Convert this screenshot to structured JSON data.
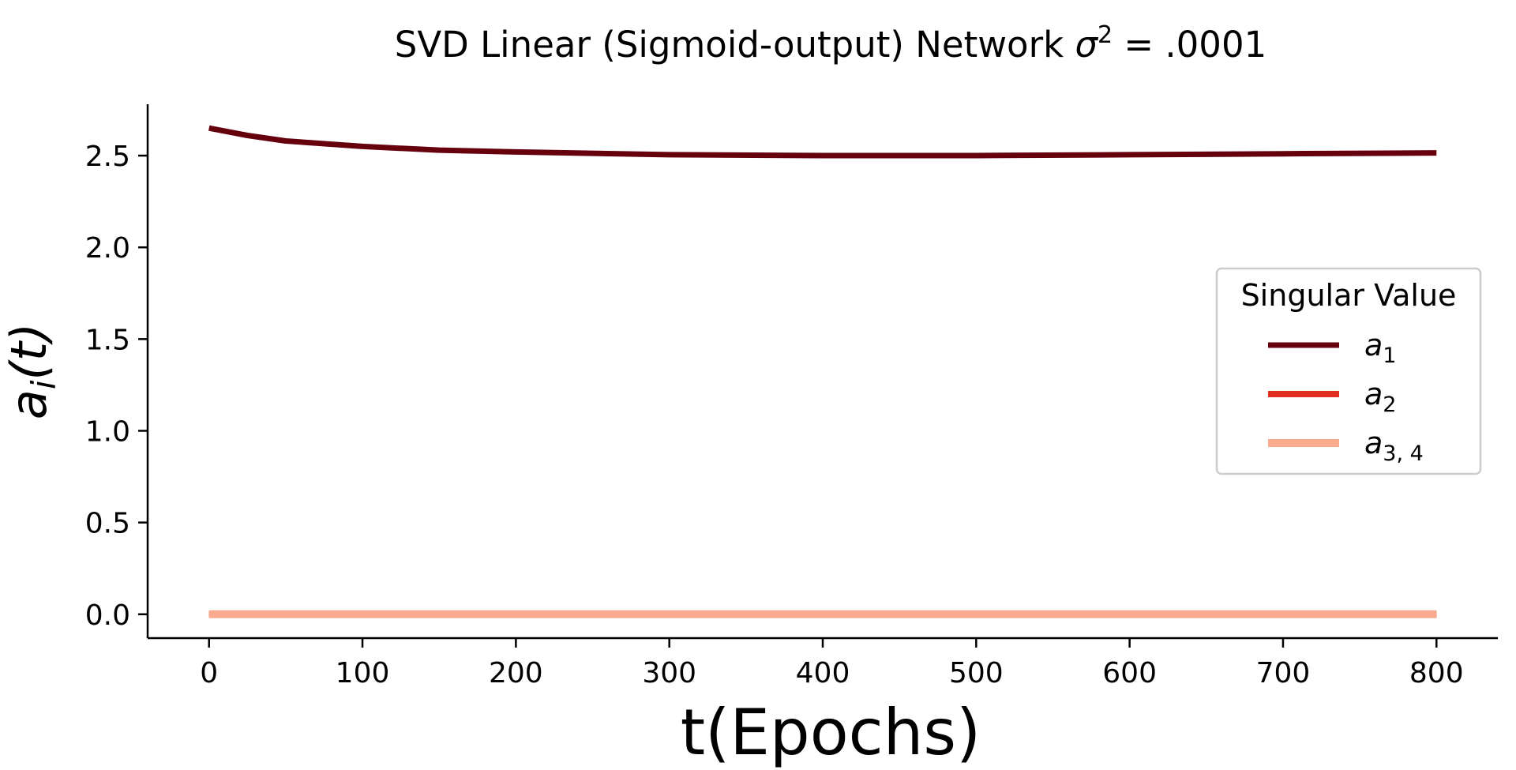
{
  "chart_data": {
    "type": "line",
    "title": "SVD Linear (Sigmoid-output) Network σ² = .0001",
    "title_parts": {
      "main": "SVD Linear (Sigmoid-output) Network ",
      "symbol": "σ",
      "sup": "2",
      "tail": " = .0001"
    },
    "xlabel": "t(Epochs)",
    "ylabel": "a",
    "ylabel_sub": "i",
    "ylabel_tail": "(t)",
    "xlim": [
      -40,
      840
    ],
    "ylim": [
      -0.13,
      2.78
    ],
    "xticks": [
      0,
      100,
      200,
      300,
      400,
      500,
      600,
      700,
      800
    ],
    "xtick_labels": [
      "0",
      "100",
      "200",
      "300",
      "400",
      "500",
      "600",
      "700",
      "800"
    ],
    "yticks": [
      0.0,
      0.5,
      1.0,
      1.5,
      2.0,
      2.5
    ],
    "ytick_labels": [
      "0.0",
      "0.5",
      "1.0",
      "1.5",
      "2.0",
      "2.5"
    ],
    "grid": false,
    "legend": {
      "title": "Singular Value",
      "placement": "center-right"
    },
    "series": [
      {
        "name": "a",
        "name_sub": "1",
        "color": "#67000d",
        "x": [
          0,
          25,
          50,
          100,
          150,
          200,
          300,
          400,
          500,
          600,
          700,
          800
        ],
        "y": [
          2.65,
          2.61,
          2.58,
          2.55,
          2.53,
          2.52,
          2.505,
          2.5,
          2.5,
          2.505,
          2.51,
          2.515
        ]
      },
      {
        "name": "a",
        "name_sub": "2",
        "color": "#e03020",
        "x": [
          0,
          800
        ],
        "y": [
          0.0,
          0.0
        ]
      },
      {
        "name": "a",
        "name_sub": "3, 4",
        "color": "#f8ab8e",
        "x": [
          0,
          800
        ],
        "y": [
          0.0,
          0.0
        ]
      }
    ]
  }
}
